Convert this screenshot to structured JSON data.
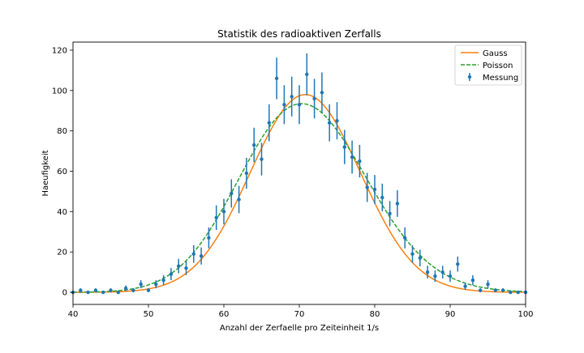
{
  "chart_data": {
    "type": "scatter",
    "title": "Statistik des radioaktiven Zerfalls",
    "xlabel": "Anzahl der Zerfaelle pro Zeiteinheit 1/s",
    "ylabel": "Haeufigkeit",
    "xlim": [
      40,
      100
    ],
    "ylim": [
      -6,
      124
    ],
    "x_ticks": [
      "40",
      "50",
      "60",
      "70",
      "80",
      "90",
      "100"
    ],
    "y_ticks": [
      "0",
      "20",
      "40",
      "60",
      "80",
      "100",
      "120"
    ],
    "grid": false,
    "legend_position": "top-right",
    "series": [
      {
        "name": "Gauss",
        "kind": "line",
        "style": "solid",
        "color": "#ff7f0e",
        "model": {
          "distribution": "normal",
          "mean": 70.8,
          "sigma": 7.3,
          "peak": 98
        }
      },
      {
        "name": "Poisson",
        "kind": "line",
        "style": "dashed",
        "color": "#2ca02c",
        "model": {
          "distribution": "poisson",
          "mean": 70.8,
          "peak": 93.5
        }
      },
      {
        "name": "Messung",
        "kind": "errorbar",
        "color": "#1f77b4",
        "x": [
          40,
          41,
          42,
          43,
          44,
          45,
          46,
          47,
          48,
          49,
          50,
          51,
          52,
          53,
          54,
          55,
          56,
          57,
          58,
          59,
          60,
          61,
          62,
          63,
          64,
          65,
          66,
          67,
          68,
          69,
          70,
          71,
          72,
          73,
          74,
          75,
          76,
          77,
          78,
          79,
          80,
          81,
          82,
          83,
          84,
          85,
          86,
          87,
          88,
          89,
          90,
          91,
          92,
          93,
          94,
          95,
          96,
          97,
          98,
          99,
          100
        ],
        "y": [
          0,
          1,
          0,
          1,
          0,
          1,
          0,
          2,
          1,
          4,
          1,
          4,
          6,
          9,
          13,
          12,
          19,
          18,
          27,
          37,
          40,
          49,
          46,
          59,
          73,
          66,
          84,
          106,
          93,
          97,
          93,
          108,
          96,
          99,
          84,
          85,
          72,
          67,
          65,
          52,
          51,
          47,
          39,
          44,
          27,
          19,
          17,
          10,
          8,
          10,
          8,
          14,
          3,
          6,
          1,
          4,
          1,
          1,
          0,
          0,
          0
        ]
      }
    ]
  }
}
